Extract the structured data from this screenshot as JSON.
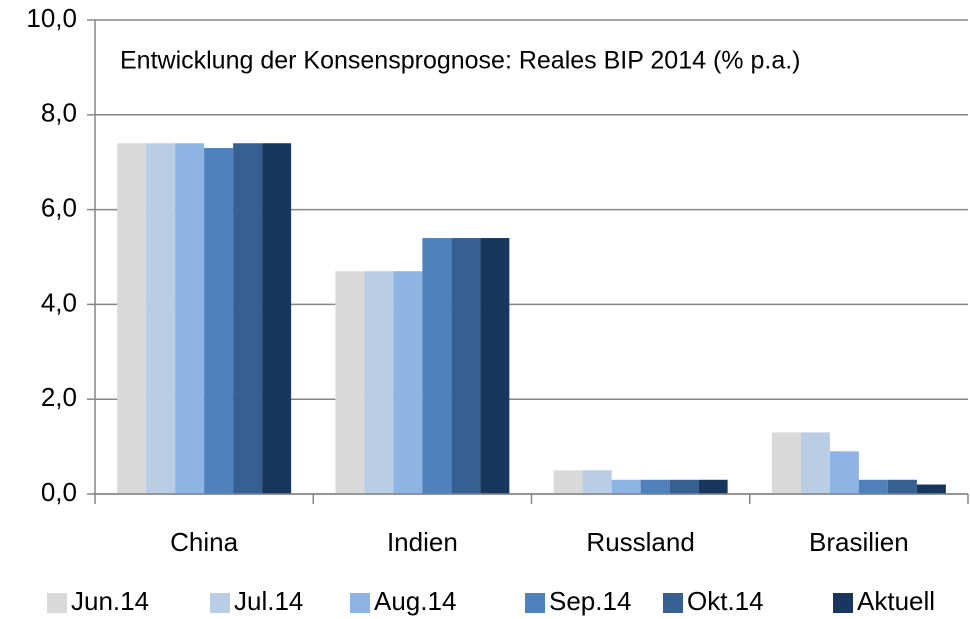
{
  "chart_data": {
    "type": "bar",
    "title": "Entwicklung der Konsensprognose: Reales BIP 2014 (% p.a.)",
    "categories": [
      "China",
      "Indien",
      "Russland",
      "Brasilien"
    ],
    "series": [
      {
        "name": "Jun.14",
        "color": "#d9d9d9",
        "values": [
          7.4,
          4.7,
          0.5,
          1.3
        ]
      },
      {
        "name": "Jul.14",
        "color": "#b9cde5",
        "values": [
          7.4,
          4.7,
          0.5,
          1.3
        ]
      },
      {
        "name": "Aug.14",
        "color": "#8eb4e3",
        "values": [
          7.4,
          4.7,
          0.3,
          0.9
        ]
      },
      {
        "name": "Sep.14",
        "color": "#4f81bd",
        "values": [
          7.3,
          5.4,
          0.3,
          0.3
        ]
      },
      {
        "name": "Okt.14",
        "color": "#376092",
        "values": [
          7.4,
          5.4,
          0.3,
          0.3
        ]
      },
      {
        "name": "Aktuell",
        "color": "#17375e",
        "values": [
          7.4,
          5.4,
          0.3,
          0.2
        ]
      }
    ],
    "ylim": [
      0,
      10
    ],
    "yticks": [
      {
        "value": 0,
        "label": "0,0"
      },
      {
        "value": 2,
        "label": "2,0"
      },
      {
        "value": 4,
        "label": "4,0"
      },
      {
        "value": 6,
        "label": "6,0"
      },
      {
        "value": 8,
        "label": "8,0"
      },
      {
        "value": 10,
        "label": "10,0"
      }
    ],
    "grid": true,
    "legend": "bottom"
  }
}
